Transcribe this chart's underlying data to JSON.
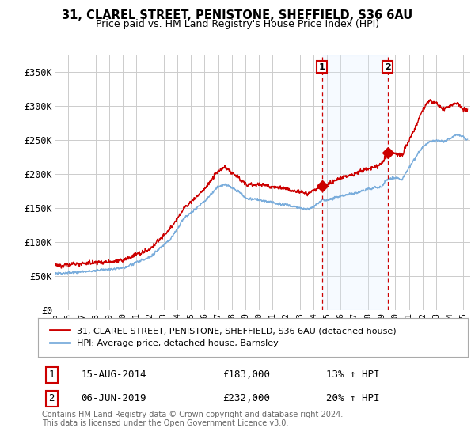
{
  "title": "31, CLAREL STREET, PENISTONE, SHEFFIELD, S36 6AU",
  "subtitle": "Price paid vs. HM Land Registry's House Price Index (HPI)",
  "ylabel_ticks": [
    "£0",
    "£50K",
    "£100K",
    "£150K",
    "£200K",
    "£250K",
    "£300K",
    "£350K"
  ],
  "ytick_values": [
    0,
    50000,
    100000,
    150000,
    200000,
    250000,
    300000,
    350000
  ],
  "ylim": [
    0,
    375000
  ],
  "xlim_start": 1995.0,
  "xlim_end": 2025.5,
  "red_color": "#cc0000",
  "blue_color": "#7aaddc",
  "shade_color": "#ddeeff",
  "marker1_date": 2014.62,
  "marker1_value": 183000,
  "marker2_date": 2019.43,
  "marker2_value": 232000,
  "annotation1": [
    "1",
    "15-AUG-2014",
    "£183,000",
    "13% ↑ HPI"
  ],
  "annotation2": [
    "2",
    "06-JUN-2019",
    "£232,000",
    "20% ↑ HPI"
  ],
  "legend_label_red": "31, CLAREL STREET, PENISTONE, SHEFFIELD, S36 6AU (detached house)",
  "legend_label_blue": "HPI: Average price, detached house, Barnsley",
  "footer": "Contains HM Land Registry data © Crown copyright and database right 2024.\nThis data is licensed under the Open Government Licence v3.0."
}
